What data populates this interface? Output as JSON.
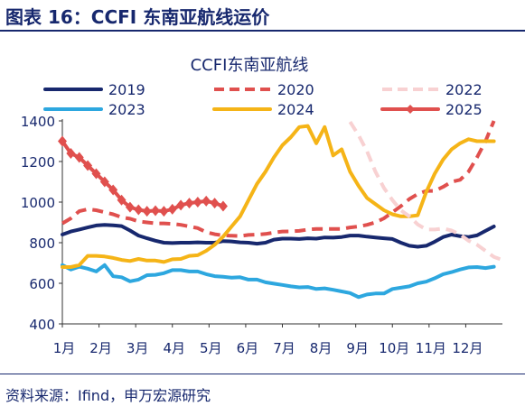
{
  "figure": {
    "header": "图表 16：CCFI 东南亚航线运价",
    "source": "资料来源：Ifind，申万宏源研究"
  },
  "chart_data": {
    "type": "line",
    "title": "CCFI东南亚航线",
    "xlabel": "",
    "ylabel": "",
    "x_ticks": [
      "1月",
      "2月",
      "3月",
      "4月",
      "5月",
      "6月",
      "7月",
      "8月",
      "9月",
      "10月",
      "11月",
      "12月"
    ],
    "y_ticks": [
      400,
      600,
      800,
      1000,
      1200,
      1400
    ],
    "ylim": [
      400,
      1400
    ],
    "xlim": [
      1,
      53
    ],
    "x_unit": "week of year",
    "grid": false,
    "legend_position": "top",
    "series": [
      {
        "name": "2019",
        "color": "#17286e",
        "style": "solid",
        "x": [
          1,
          2,
          3,
          4,
          5,
          6,
          7,
          8,
          9,
          10,
          11,
          12,
          13,
          14,
          15,
          16,
          17,
          18,
          19,
          20,
          21,
          22,
          23,
          24,
          25,
          26,
          27,
          28,
          29,
          30,
          31,
          32,
          33,
          34,
          35,
          36,
          37,
          38,
          39,
          40,
          41,
          42,
          43,
          44,
          45,
          46,
          47,
          48,
          49,
          50,
          51,
          52
        ],
        "y": [
          840,
          855,
          865,
          875,
          885,
          888,
          886,
          882,
          860,
          835,
          822,
          810,
          800,
          798,
          800,
          800,
          802,
          800,
          800,
          808,
          806,
          802,
          800,
          795,
          800,
          815,
          820,
          820,
          818,
          822,
          820,
          826,
          825,
          828,
          835,
          835,
          830,
          826,
          822,
          818,
          800,
          785,
          780,
          785,
          805,
          828,
          840,
          832,
          828,
          836,
          858,
          880
        ]
      },
      {
        "name": "2020",
        "color": "#e0504e",
        "style": "dash",
        "x": [
          1,
          2,
          3,
          4,
          5,
          6,
          7,
          8,
          9,
          10,
          11,
          12,
          13,
          14,
          15,
          16,
          17,
          18,
          19,
          20,
          21,
          22,
          23,
          24,
          25,
          26,
          27,
          28,
          29,
          30,
          31,
          32,
          33,
          34,
          35,
          36,
          37,
          38,
          39,
          40,
          41,
          42,
          43,
          44,
          45,
          46,
          47,
          48,
          49,
          50,
          51,
          52
        ],
        "y": [
          895,
          920,
          955,
          965,
          960,
          950,
          940,
          925,
          918,
          905,
          900,
          895,
          895,
          893,
          888,
          880,
          872,
          852,
          842,
          836,
          834,
          833,
          838,
          840,
          843,
          850,
          855,
          856,
          858,
          865,
          868,
          868,
          868,
          868,
          875,
          880,
          888,
          900,
          920,
          950,
          980,
          1015,
          1040,
          1055,
          1055,
          1075,
          1100,
          1110,
          1150,
          1220,
          1300,
          1400
        ]
      },
      {
        "name": "2022",
        "color": "#f8d1d2",
        "style": "dash",
        "x": [
          35,
          36,
          37,
          38,
          39,
          40,
          41,
          42,
          43,
          44,
          45,
          46,
          47,
          48,
          49,
          50,
          51,
          52,
          53
        ],
        "y": [
          1395,
          1330,
          1250,
          1150,
          1070,
          1010,
          960,
          930,
          890,
          865,
          865,
          870,
          860,
          840,
          810,
          790,
          760,
          730,
          715
        ]
      },
      {
        "name": "2023",
        "color": "#2da7df",
        "style": "solid",
        "x": [
          1,
          2,
          3,
          4,
          5,
          6,
          7,
          8,
          9,
          10,
          11,
          12,
          13,
          14,
          15,
          16,
          17,
          18,
          19,
          20,
          21,
          22,
          23,
          24,
          25,
          26,
          27,
          28,
          29,
          30,
          31,
          32,
          33,
          34,
          35,
          36,
          37,
          38,
          39,
          40,
          41,
          42,
          43,
          44,
          45,
          46,
          47,
          48,
          49,
          50,
          51,
          52
        ],
        "y": [
          690,
          668,
          682,
          672,
          658,
          690,
          635,
          630,
          610,
          618,
          640,
          642,
          650,
          665,
          665,
          658,
          658,
          645,
          635,
          632,
          628,
          630,
          618,
          618,
          605,
          598,
          592,
          585,
          580,
          582,
          572,
          575,
          568,
          560,
          552,
          532,
          545,
          550,
          550,
          572,
          578,
          585,
          600,
          608,
          625,
          645,
          655,
          668,
          678,
          680,
          675,
          682
        ]
      },
      {
        "name": "2024",
        "color": "#f5b417",
        "style": "solid",
        "x": [
          1,
          2,
          3,
          4,
          5,
          6,
          7,
          8,
          9,
          10,
          11,
          12,
          13,
          14,
          15,
          16,
          17,
          18,
          19,
          20,
          21,
          22,
          23,
          24,
          25,
          26,
          27,
          28,
          29,
          30,
          31,
          32,
          33,
          34,
          35,
          36,
          37,
          38,
          39,
          40,
          41,
          42,
          43,
          44,
          45,
          46,
          47,
          48,
          49,
          50,
          51,
          52
        ],
        "y": [
          680,
          680,
          690,
          735,
          735,
          732,
          725,
          715,
          710,
          720,
          712,
          712,
          705,
          718,
          720,
          735,
          738,
          760,
          790,
          830,
          880,
          930,
          1010,
          1090,
          1150,
          1220,
          1280,
          1320,
          1370,
          1375,
          1290,
          1370,
          1230,
          1260,
          1150,
          1080,
          1020,
          990,
          960,
          940,
          930,
          930,
          935,
          1050,
          1140,
          1210,
          1260,
          1290,
          1310,
          1300,
          1300,
          1300
        ]
      },
      {
        "name": "2025",
        "color": "#e0504e",
        "style": "diamond",
        "x": [
          1,
          2,
          3,
          4,
          5,
          6,
          7,
          8,
          9,
          10,
          11,
          12,
          13,
          14,
          15,
          16,
          17,
          18,
          19,
          20
        ],
        "y": [
          1300,
          1240,
          1220,
          1180,
          1140,
          1100,
          1060,
          1010,
          975,
          962,
          955,
          958,
          955,
          965,
          985,
          995,
          1000,
          1005,
          995,
          980
        ]
      }
    ]
  }
}
